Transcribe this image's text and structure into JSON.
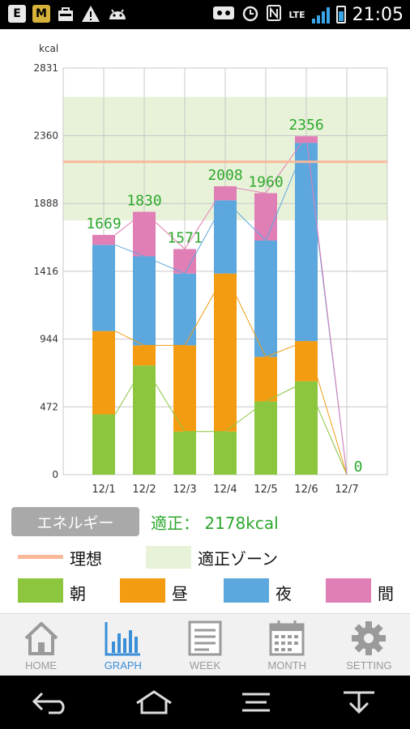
{
  "status_bar": {
    "left_icons": [
      "E",
      "M",
      "bag-icon",
      "warning-icon",
      "android-icon"
    ],
    "network": "LTE",
    "time": "21:05"
  },
  "chart_data": {
    "type": "bar",
    "stacked": true,
    "unit_label": "kcal",
    "categories": [
      "12/1",
      "12/2",
      "12/3",
      "12/4",
      "12/5",
      "12/6",
      "12/7"
    ],
    "yticks": [
      "0",
      "472",
      "944",
      "1416",
      "1888",
      "2360",
      "2831"
    ],
    "ylim": [
      0,
      2831
    ],
    "totals": [
      "1669",
      "1830",
      "1571",
      "2008",
      "1960",
      "2356",
      "0"
    ],
    "series": [
      {
        "name": "朝",
        "color": "#8cc63f",
        "values": [
          420,
          760,
          300,
          300,
          510,
          650,
          0
        ]
      },
      {
        "name": "昼",
        "color": "#f39c12",
        "values": [
          580,
          140,
          600,
          1100,
          310,
          280,
          0
        ]
      },
      {
        "name": "夜",
        "color": "#5ca7dd",
        "values": [
          600,
          620,
          500,
          510,
          810,
          1380,
          0
        ]
      },
      {
        "name": "間",
        "color": "#e07fb6",
        "values": [
          69,
          310,
          171,
          98,
          330,
          46,
          0
        ]
      }
    ],
    "ideal_line": 2178,
    "proper_zone": [
      1770,
      2630
    ],
    "grid": true
  },
  "legend": {
    "energy_button": "エネルギー",
    "proper_value": "適正： 2178kcal",
    "ideal_label": "理想",
    "zone_label": "適正ゾーン",
    "ideal_color": "#f8b89a",
    "zone_color": "#e8f2d8"
  },
  "nav": {
    "items": [
      {
        "label": "HOME",
        "icon": "home-icon"
      },
      {
        "label": "GRAPH",
        "icon": "graph-icon"
      },
      {
        "label": "WEEK",
        "icon": "week-icon"
      },
      {
        "label": "MONTH",
        "icon": "month-icon"
      },
      {
        "label": "SETTING",
        "icon": "gear-icon"
      }
    ],
    "active": "GRAPH"
  },
  "system_nav": [
    "back-icon",
    "home-icon",
    "menu-icon",
    "notifications-icon"
  ]
}
